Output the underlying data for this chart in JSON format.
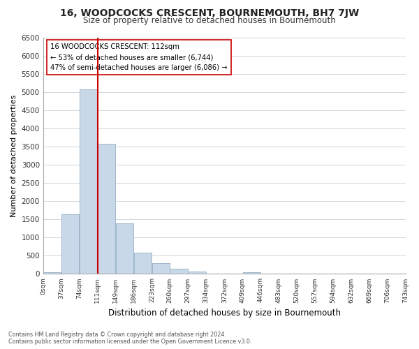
{
  "title": "16, WOODCOCKS CRESCENT, BOURNEMOUTH, BH7 7JW",
  "subtitle": "Size of property relative to detached houses in Bournemouth",
  "xlabel": "Distribution of detached houses by size in Bournemouth",
  "ylabel": "Number of detached properties",
  "bar_color": "#c8d8e8",
  "bar_edge_color": "#a0b8cc",
  "property_line_color": "#cc0000",
  "property_value": 112,
  "annotation_title": "16 WOODCOCKS CRESCENT: 112sqm",
  "annotation_line1": "← 53% of detached houses are smaller (6,744)",
  "annotation_line2": "47% of semi-detached houses are larger (6,086) →",
  "bin_edges": [
    0,
    37,
    74,
    111,
    149,
    186,
    223,
    260,
    297,
    334,
    372,
    409,
    446,
    483,
    520,
    557,
    594,
    632,
    669,
    706,
    743
  ],
  "bin_labels": [
    "0sqm",
    "37sqm",
    "74sqm",
    "111sqm",
    "149sqm",
    "186sqm",
    "223sqm",
    "260sqm",
    "297sqm",
    "334sqm",
    "372sqm",
    "409sqm",
    "446sqm",
    "483sqm",
    "520sqm",
    "557sqm",
    "594sqm",
    "632sqm",
    "669sqm",
    "706sqm",
    "743sqm"
  ],
  "bar_heights": [
    50,
    1650,
    5080,
    3590,
    1400,
    590,
    300,
    150,
    60,
    0,
    0,
    40,
    0,
    0,
    0,
    0,
    0,
    0,
    0,
    0
  ],
  "ylim": [
    0,
    6500
  ],
  "yticks": [
    0,
    500,
    1000,
    1500,
    2000,
    2500,
    3000,
    3500,
    4000,
    4500,
    5000,
    5500,
    6000,
    6500
  ],
  "footer_line1": "Contains HM Land Registry data © Crown copyright and database right 2024.",
  "footer_line2": "Contains public sector information licensed under the Open Government Licence v3.0.",
  "background_color": "#ffffff",
  "grid_color": "#d0d8e0"
}
